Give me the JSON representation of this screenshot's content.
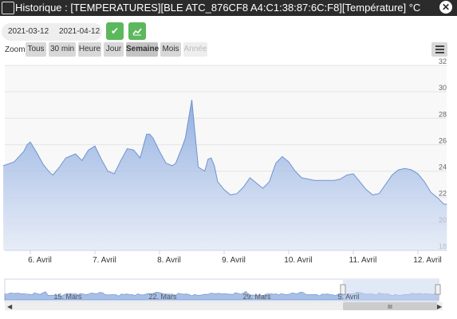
{
  "window": {
    "title": "Historique : [TEMPERATURES][BLE ATC_876CF8 A4:C1:38:87:6C:F8][Température] °C"
  },
  "date_range": {
    "start": "2021-03-12",
    "end": "2021-04-12"
  },
  "zoom": {
    "label": "Zoom",
    "buttons": [
      "Tous",
      "30 min",
      "Heure",
      "Jour",
      "Semaine",
      "Mois",
      "Année"
    ],
    "selected": "Semaine",
    "disabled": [
      "Année"
    ]
  },
  "chart_data": {
    "type": "area",
    "ylim": [
      18,
      32
    ],
    "yticks": [
      18,
      20,
      22,
      24,
      26,
      28,
      30,
      32
    ],
    "xticks": [
      "6. Avril",
      "7. Avril",
      "8. Avril",
      "9. Avril",
      "10. Avril",
      "11. Avril",
      "12. Avril"
    ],
    "x": [
      5.58,
      5.75,
      5.9,
      5.95,
      6.0,
      6.1,
      6.2,
      6.3,
      6.35,
      6.45,
      6.55,
      6.7,
      6.8,
      6.9,
      7.0,
      7.1,
      7.2,
      7.3,
      7.4,
      7.5,
      7.6,
      7.7,
      7.8,
      7.85,
      7.9,
      8.0,
      8.1,
      8.2,
      8.25,
      8.35,
      8.4,
      8.5,
      8.6,
      8.7,
      8.75,
      8.8,
      8.85,
      8.9,
      9.0,
      9.1,
      9.2,
      9.3,
      9.4,
      9.5,
      9.6,
      9.7,
      9.8,
      9.9,
      10.0,
      10.1,
      10.2,
      10.3,
      10.4,
      10.5,
      10.6,
      10.7,
      10.8,
      10.9,
      11.0,
      11.1,
      11.2,
      11.3,
      11.4,
      11.5,
      11.6,
      11.7,
      11.8,
      11.9,
      12.0,
      12.1,
      12.2,
      12.3,
      12.4,
      12.45
    ],
    "y": [
      24.4,
      24.7,
      25.5,
      26.0,
      26.2,
      25.4,
      24.5,
      23.9,
      23.7,
      24.3,
      25.0,
      25.3,
      24.8,
      25.6,
      25.9,
      24.9,
      24.0,
      23.8,
      24.8,
      25.7,
      25.6,
      25.0,
      26.8,
      26.8,
      26.5,
      25.5,
      24.6,
      24.4,
      24.6,
      25.8,
      26.5,
      29.4,
      24.3,
      24.0,
      24.9,
      25.0,
      24.4,
      23.2,
      22.6,
      22.2,
      22.3,
      22.8,
      23.5,
      23.1,
      22.7,
      23.2,
      24.6,
      25.1,
      24.7,
      24.0,
      23.5,
      23.4,
      23.3,
      23.3,
      23.3,
      23.3,
      23.4,
      23.7,
      23.8,
      23.2,
      22.6,
      22.2,
      22.3,
      23.0,
      23.7,
      24.1,
      24.2,
      24.1,
      23.8,
      23.2,
      22.4,
      22.0,
      21.5,
      21.5
    ],
    "navigator": {
      "labels": [
        "15. Mars",
        "22. Mars",
        "29. Mars",
        "5. Avril"
      ]
    }
  },
  "colors": {
    "accent": "#5cb85c",
    "series": "#6f93d1"
  },
  "icons": {
    "validate": "check-icon",
    "chart": "chart-icon",
    "menu": "hamburger-icon",
    "close": "close-icon"
  }
}
